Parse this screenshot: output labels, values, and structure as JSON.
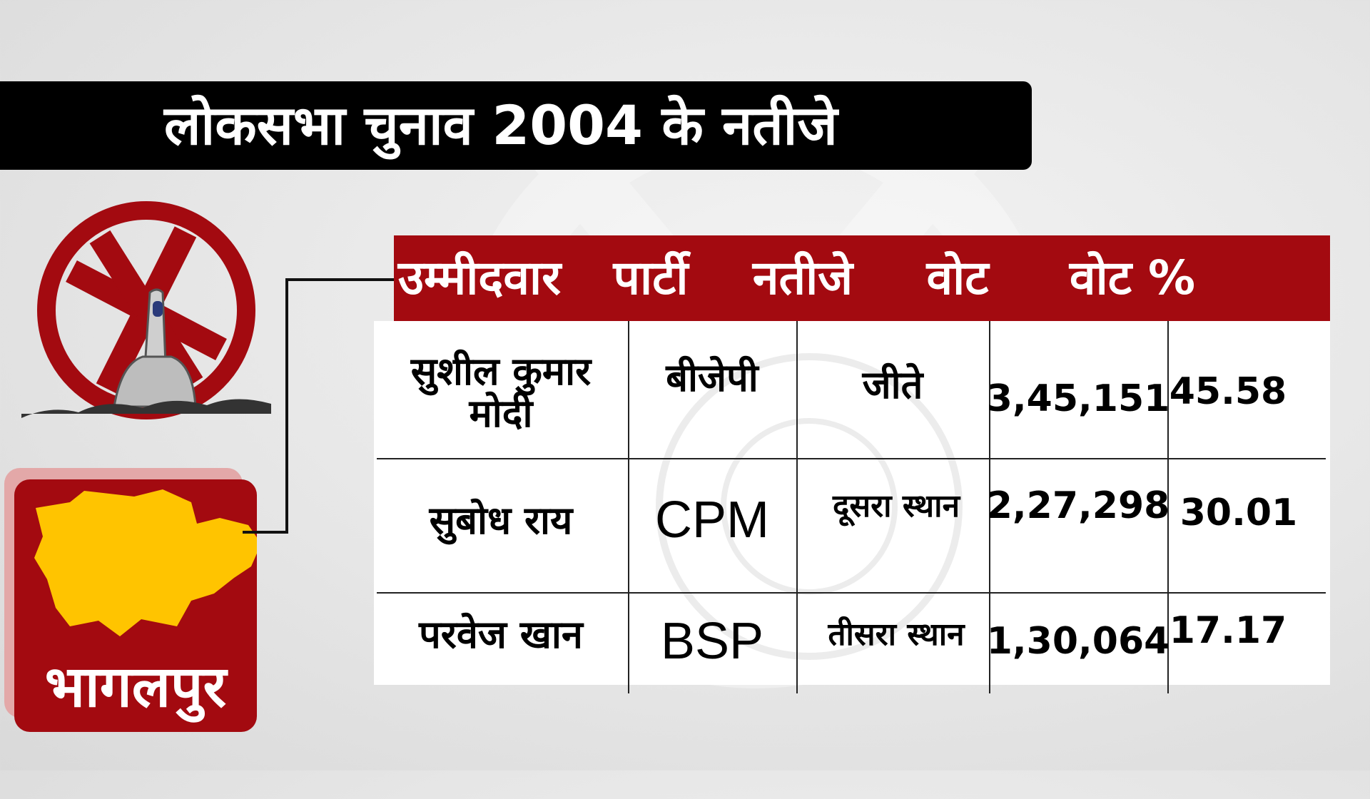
{
  "title": "लोकसभा चुनाव 2004 के नतीजे",
  "district": "भागलपुर",
  "table": {
    "headers": [
      "उम्मीदवार",
      "पार्टी",
      "नतीजे",
      "वोट",
      "वोट %"
    ],
    "rows": [
      {
        "candidate": "सुशील कुमार मोदी",
        "party": "बीजेपी",
        "result": "जीते",
        "votes": "3,45,151",
        "vote_pct": "45.58"
      },
      {
        "candidate": "सुबोध राय",
        "party": "CPM",
        "result": "दूसरा स्थान",
        "votes": "2,27,298",
        "vote_pct": "30.01"
      },
      {
        "candidate": "परवेज खान",
        "party": "BSP",
        "result": "तीसरा स्थान",
        "votes": "1,30,064",
        "vote_pct": "17.17"
      }
    ]
  },
  "colors": {
    "accent": "#a30a10",
    "map": "#ffc400",
    "title_bg": "#000000"
  }
}
